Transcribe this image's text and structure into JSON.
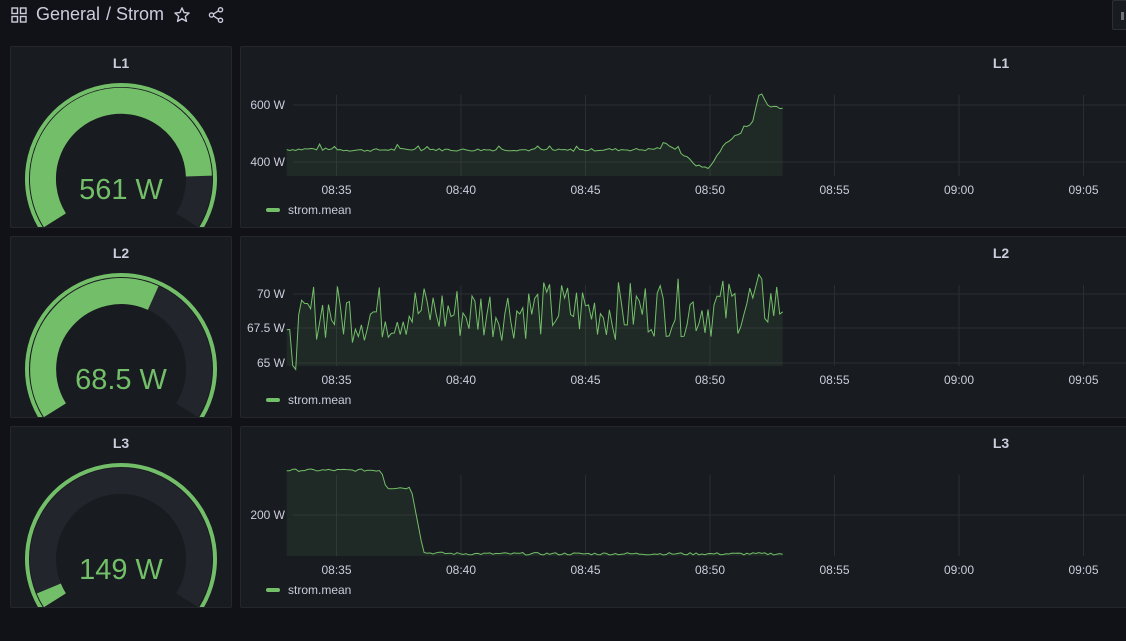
{
  "topbar": {
    "folder": "General",
    "title": "/ Strom",
    "icons": [
      "apps-grid-icon",
      "star-icon",
      "share-icon"
    ]
  },
  "colors": {
    "accent": "#73bf69",
    "background": "#111217",
    "panel": "#181b1f",
    "track": "#22252b"
  },
  "panels": [
    {
      "gauge": {
        "title": "L1",
        "value_text": "561 W",
        "fraction": 0.86
      },
      "timeseries": {
        "title": "L1",
        "legend": "strom.mean",
        "x_ticks": [
          "08:35",
          "08:40",
          "08:45",
          "08:50",
          "08:55",
          "09:00",
          "09:05"
        ],
        "y_ticks": [
          "400 W",
          "600 W"
        ]
      }
    },
    {
      "gauge": {
        "title": "L2",
        "value_text": "68.5 W",
        "fraction": 0.6
      },
      "timeseries": {
        "title": "L2",
        "legend": "strom.mean",
        "x_ticks": [
          "08:35",
          "08:40",
          "08:45",
          "08:50",
          "08:55",
          "09:00",
          "09:05"
        ],
        "y_ticks": [
          "65 W",
          "67.5 W",
          "70 W"
        ]
      }
    },
    {
      "gauge": {
        "title": "L3",
        "value_text": "149 W",
        "fraction": 0.04
      },
      "timeseries": {
        "title": "L3",
        "legend": "strom.mean",
        "x_ticks": [
          "08:35",
          "08:40",
          "08:45",
          "08:50",
          "08:55",
          "09:00",
          "09:05"
        ],
        "y_ticks": [
          "200 W"
        ]
      }
    }
  ],
  "chart_data": [
    {
      "type": "line",
      "title": "L1",
      "series": [
        {
          "name": "strom.mean"
        }
      ],
      "x_range": [
        "08:33",
        "09:07"
      ],
      "ylim": [
        360,
        660
      ],
      "points": [
        [
          "08:33",
          440
        ],
        [
          "08:34",
          442
        ],
        [
          "08:36",
          438
        ],
        [
          "08:38",
          441
        ],
        [
          "08:40",
          439
        ],
        [
          "08:42",
          440
        ],
        [
          "08:44",
          438
        ],
        [
          "08:46",
          440
        ],
        [
          "08:47.5",
          440
        ],
        [
          "08:48.5",
          450
        ],
        [
          "08:49.5",
          390
        ],
        [
          "08:50",
          385
        ],
        [
          "08:50.5",
          450
        ],
        [
          "08:51",
          480
        ],
        [
          "08:51.7",
          520
        ],
        [
          "08:52",
          620
        ],
        [
          "08:52.3",
          575
        ],
        [
          "08:53",
          565
        ]
      ]
    },
    {
      "type": "line",
      "title": "L2",
      "series": [
        {
          "name": "strom.mean"
        }
      ],
      "x_range": [
        "08:33",
        "09:07"
      ],
      "ylim": [
        65,
        70.4
      ],
      "points": [
        [
          "08:33",
          65.5
        ],
        [
          "08:34",
          68
        ],
        [
          "08:36",
          67.8
        ],
        [
          "08:38",
          68
        ],
        [
          "08:40",
          67.9
        ],
        [
          "08:42",
          68
        ],
        [
          "08:44",
          68.1
        ],
        [
          "08:46",
          68
        ],
        [
          "08:48",
          68.2
        ],
        [
          "08:50",
          68.1
        ],
        [
          "08:52",
          68.5
        ],
        [
          "08:53",
          68.3
        ]
      ]
    },
    {
      "type": "line",
      "title": "L3",
      "series": [
        {
          "name": "strom.mean"
        }
      ],
      "x_range": [
        "08:33",
        "09:07"
      ],
      "ylim": [
        150,
        240
      ],
      "points": [
        [
          "08:33",
          228
        ],
        [
          "08:36.8",
          228
        ],
        [
          "08:37",
          212
        ],
        [
          "08:38",
          212
        ],
        [
          "08:38.5",
          153
        ],
        [
          "08:40",
          152
        ],
        [
          "08:45",
          152
        ],
        [
          "08:50",
          152
        ],
        [
          "08:53",
          152
        ]
      ]
    }
  ]
}
